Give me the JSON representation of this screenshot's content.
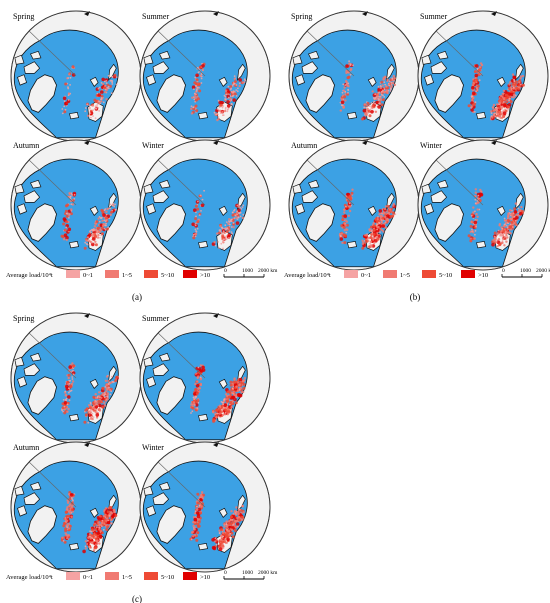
{
  "panels": [
    {
      "label": "(a)",
      "maps": [
        {
          "season": "Spring",
          "intensity": 0.25
        },
        {
          "season": "Summer",
          "intensity": 0.45
        },
        {
          "season": "Autumn",
          "intensity": 0.55
        },
        {
          "season": "Winter",
          "intensity": 0.35
        }
      ]
    },
    {
      "label": "(b)",
      "maps": [
        {
          "season": "Spring",
          "intensity": 0.6
        },
        {
          "season": "Summer",
          "intensity": 0.9
        },
        {
          "season": "Autumn",
          "intensity": 0.95
        },
        {
          "season": "Winter",
          "intensity": 0.8
        }
      ]
    },
    {
      "label": "(c)",
      "maps": [
        {
          "season": "Spring",
          "intensity": 0.75
        },
        {
          "season": "Summer",
          "intensity": 0.9
        },
        {
          "season": "Autumn",
          "intensity": 1.0
        },
        {
          "season": "Winter",
          "intensity": 1.0
        }
      ]
    }
  ],
  "legend": {
    "title": "Average load/10⁴t",
    "classes": [
      {
        "label": "0~1",
        "color": "#f5a3a3"
      },
      {
        "label": "1~5",
        "color": "#f07a72"
      },
      {
        "label": "5~10",
        "color": "#ee4a35"
      },
      {
        "label": ">10",
        "color": "#e00000"
      }
    ]
  },
  "scalebar": {
    "labels": [
      "0",
      "1000",
      "2000 km"
    ]
  },
  "colors": {
    "ocean": "#3ca1e4",
    "land": "#f2f2f2",
    "coast": "#111111",
    "outline": "#555555"
  }
}
